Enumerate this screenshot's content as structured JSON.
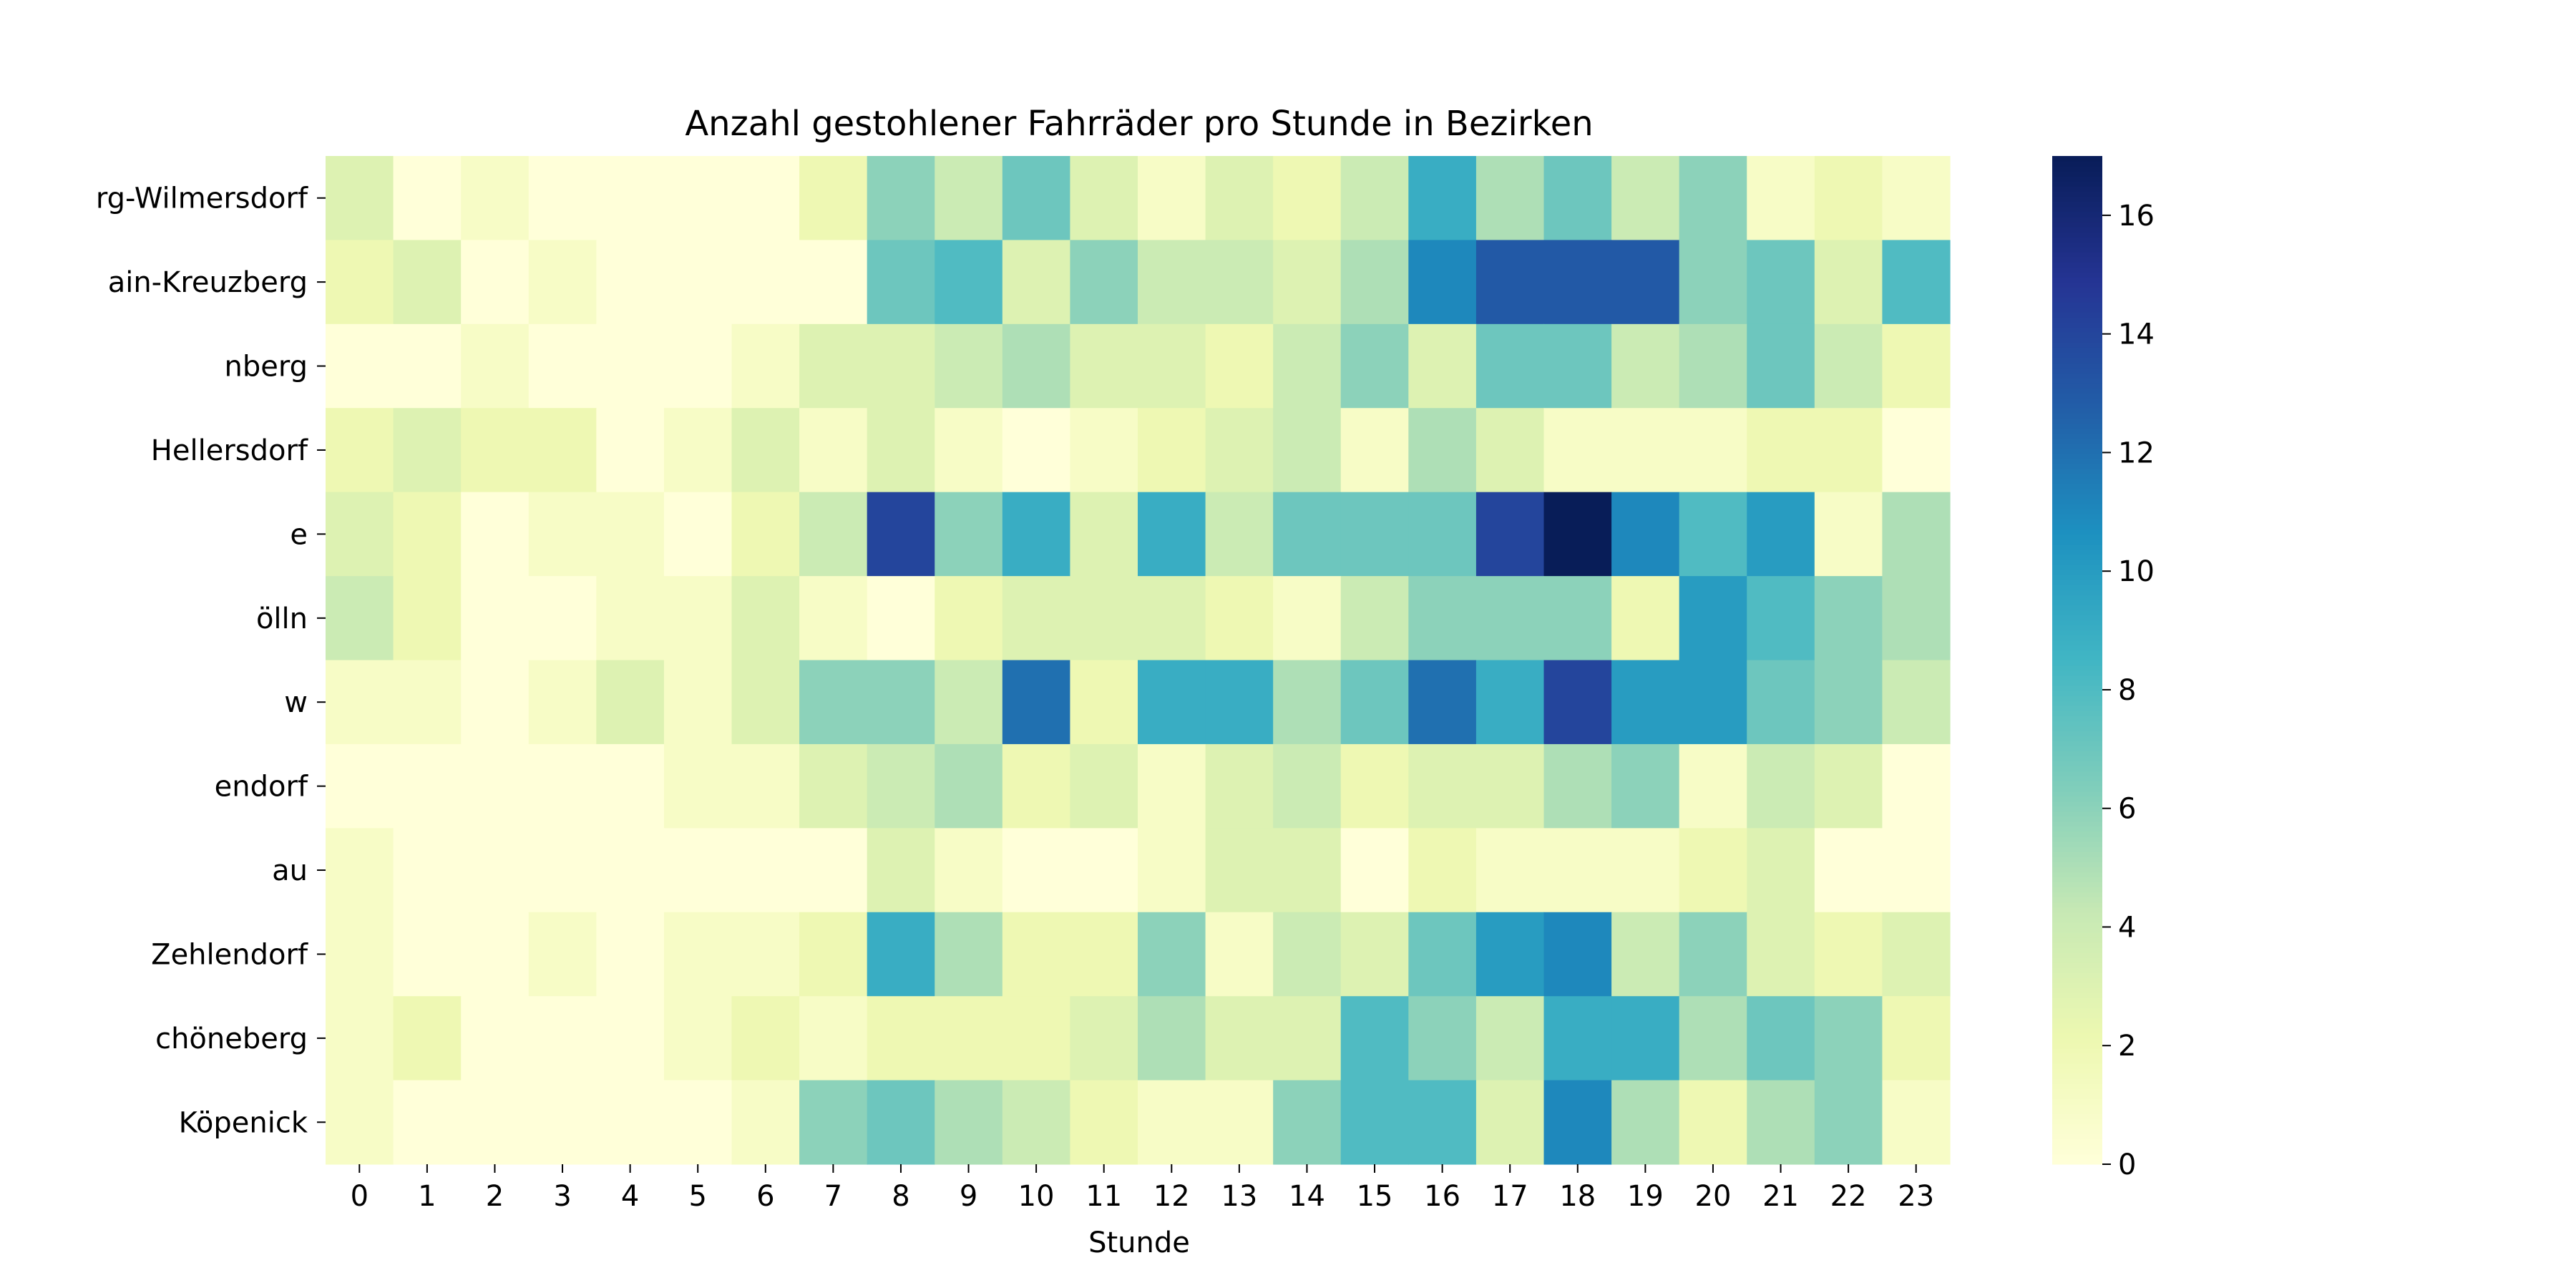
{
  "chart_data": {
    "type": "heatmap",
    "title": "Anzahl gestohlener Fahrräder pro Stunde in Bezirken",
    "xlabel": "Stunde",
    "ylabel": "",
    "x": [
      "0",
      "1",
      "2",
      "3",
      "4",
      "5",
      "6",
      "7",
      "8",
      "9",
      "10",
      "11",
      "12",
      "13",
      "14",
      "15",
      "16",
      "17",
      "18",
      "19",
      "20",
      "21",
      "22",
      "23"
    ],
    "y": [
      "rg-Wilmersdorf",
      "ain-Kreuzberg",
      "nberg",
      "Hellersdorf",
      "e",
      "ölln",
      "w",
      "endorf",
      "au",
      "Zehlendorf",
      "chöneberg",
      "Köpenick"
    ],
    "values": [
      [
        3,
        0,
        1,
        0,
        0,
        0,
        0,
        2,
        6,
        4,
        7,
        3,
        1,
        3,
        2,
        4,
        9,
        5,
        7,
        4,
        6,
        1,
        2,
        1
      ],
      [
        2,
        3,
        0,
        1,
        0,
        0,
        0,
        0,
        7,
        8,
        3,
        6,
        4,
        4,
        3,
        5,
        11,
        13,
        13,
        13,
        6,
        7,
        3,
        8
      ],
      [
        0,
        0,
        1,
        0,
        0,
        0,
        1,
        3,
        3,
        4,
        5,
        3,
        3,
        2,
        4,
        6,
        3,
        7,
        7,
        4,
        5,
        7,
        4,
        2
      ],
      [
        2,
        3,
        2,
        2,
        0,
        1,
        3,
        1,
        3,
        1,
        0,
        1,
        2,
        3,
        4,
        1,
        5,
        3,
        1,
        1,
        1,
        2,
        2,
        0
      ],
      [
        3,
        2,
        0,
        1,
        1,
        0,
        2,
        4,
        14,
        6,
        9,
        3,
        9,
        4,
        7,
        7,
        7,
        14,
        17,
        11,
        8,
        10,
        1,
        5
      ],
      [
        4,
        2,
        0,
        0,
        1,
        1,
        3,
        1,
        0,
        2,
        3,
        3,
        3,
        2,
        1,
        4,
        6,
        6,
        6,
        2,
        10,
        8,
        6,
        5
      ],
      [
        1,
        1,
        0,
        1,
        3,
        1,
        3,
        6,
        6,
        4,
        12,
        2,
        9,
        9,
        5,
        7,
        12,
        9,
        14,
        10,
        10,
        7,
        6,
        4
      ],
      [
        0,
        0,
        0,
        0,
        0,
        1,
        1,
        3,
        4,
        5,
        2,
        3,
        1,
        3,
        4,
        2,
        3,
        3,
        5,
        6,
        1,
        4,
        3,
        0
      ],
      [
        1,
        0,
        0,
        0,
        0,
        0,
        0,
        0,
        3,
        1,
        0,
        0,
        1,
        3,
        3,
        0,
        2,
        1,
        1,
        1,
        2,
        3,
        0,
        0
      ],
      [
        1,
        0,
        0,
        1,
        0,
        1,
        1,
        2,
        9,
        5,
        2,
        2,
        6,
        1,
        4,
        3,
        7,
        10,
        11,
        4,
        6,
        3,
        2,
        3
      ],
      [
        1,
        2,
        0,
        0,
        0,
        1,
        2,
        1,
        2,
        2,
        2,
        3,
        5,
        3,
        3,
        8,
        6,
        4,
        9,
        9,
        5,
        7,
        6,
        2
      ],
      [
        1,
        0,
        0,
        0,
        0,
        0,
        1,
        6,
        7,
        5,
        4,
        2,
        1,
        1,
        6,
        8,
        8,
        3,
        11,
        5,
        2,
        5,
        6,
        1
      ]
    ],
    "zlim": [
      0,
      17
    ],
    "colorbar_ticks": [
      0,
      2,
      4,
      6,
      8,
      10,
      12,
      14,
      16
    ],
    "colormap": "YlGnBu",
    "grid": false
  }
}
